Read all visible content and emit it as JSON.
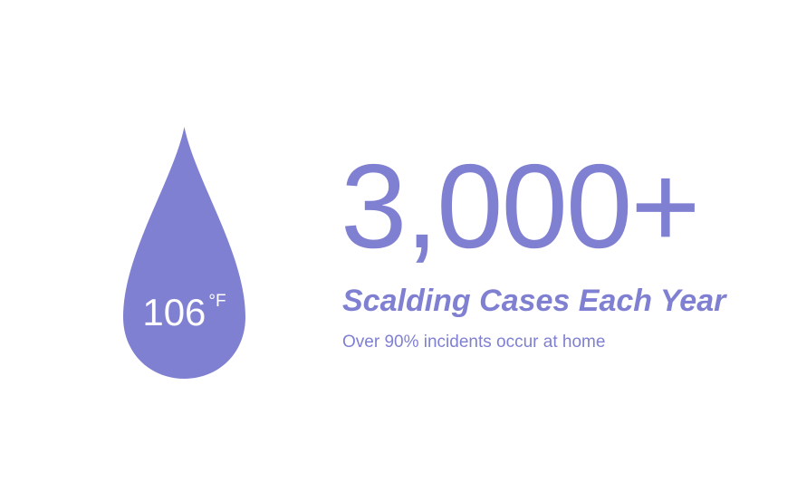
{
  "colors": {
    "accent": "#8080d2",
    "background": "#ffffff",
    "drop_text": "#ffffff"
  },
  "drop": {
    "icon": "water-drop-icon",
    "temperature_value": "106",
    "temperature_unit": "°F"
  },
  "stat": {
    "number": "3,000+",
    "label": "Scalding Cases Each Year",
    "caption": "Over 90% incidents occur at home"
  }
}
